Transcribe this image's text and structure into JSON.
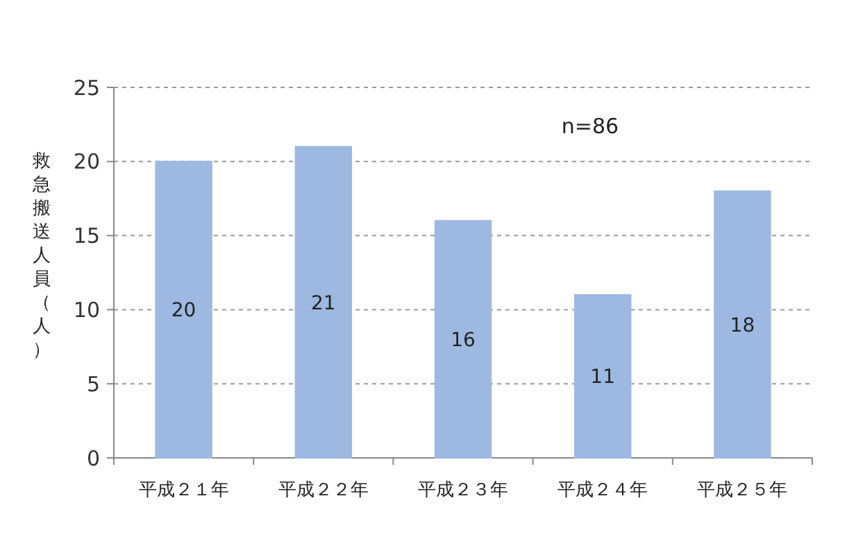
{
  "chart_data": {
    "type": "bar",
    "ylabel": "救急搬送人員（人）",
    "annotations": [
      "n=86"
    ],
    "categories": [
      "平成２１年",
      "平成２２年",
      "平成２３年",
      "平成２４年",
      "平成２５年"
    ],
    "values": [
      20,
      21,
      16,
      11,
      18
    ],
    "color": "#9db9e2",
    "ylim": [
      0,
      25
    ],
    "yticks": [
      0,
      5,
      10,
      15,
      20,
      25
    ],
    "grid": "y",
    "data_labels": true
  }
}
